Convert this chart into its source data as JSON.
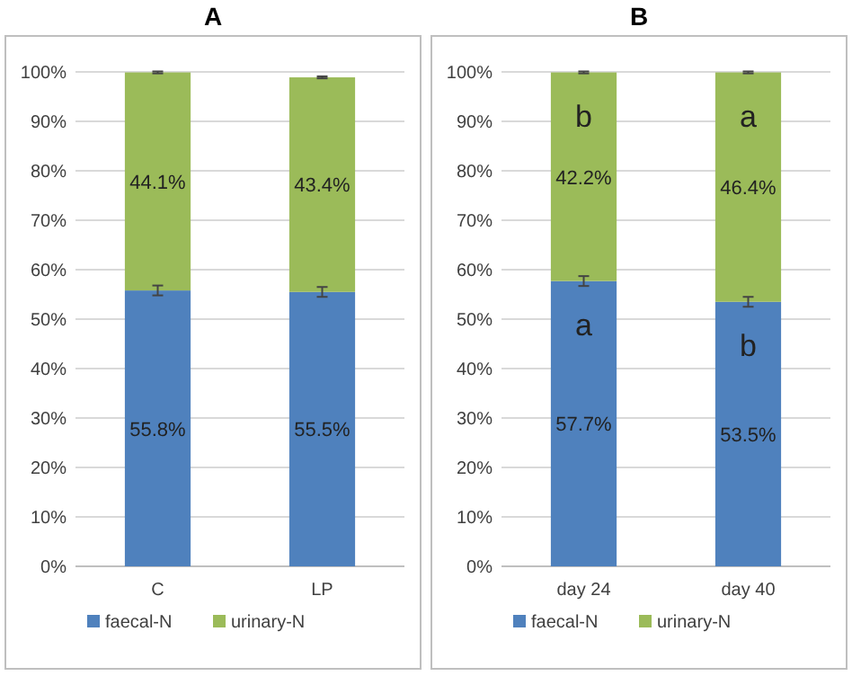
{
  "chart_data": [
    {
      "type": "bar",
      "title": "A",
      "categories": [
        "C",
        "LP"
      ],
      "stacked": true,
      "ylim": [
        0,
        100
      ],
      "yticks": [
        {
          "value": 0,
          "label": "0%"
        },
        {
          "value": 10,
          "label": "10%"
        },
        {
          "value": 20,
          "label": "20%"
        },
        {
          "value": 30,
          "label": "30%"
        },
        {
          "value": 40,
          "label": "40%"
        },
        {
          "value": 50,
          "label": "50%"
        },
        {
          "value": 60,
          "label": "60%"
        },
        {
          "value": 70,
          "label": "70%"
        },
        {
          "value": 80,
          "label": "80%"
        },
        {
          "value": 90,
          "label": "90%"
        },
        {
          "value": 100,
          "label": "100%"
        }
      ],
      "grid": "y",
      "legend": "bottom",
      "series": [
        {
          "name": "faecal-N",
          "color": "#4f81bd",
          "values": [
            55.8,
            55.5
          ],
          "errors": [
            1,
            1
          ],
          "value_labels": [
            "55.8%",
            "55.5%"
          ]
        },
        {
          "name": "urinary-N",
          "color": "#9bbb59",
          "values": [
            44.1,
            43.4
          ],
          "errors": [
            0.2,
            0.2
          ],
          "value_labels": [
            "44.1%",
            "43.4%"
          ]
        }
      ]
    },
    {
      "type": "bar",
      "title": "B",
      "categories": [
        "day 24",
        "day 40"
      ],
      "stacked": true,
      "ylim": [
        0,
        100
      ],
      "yticks": [
        {
          "value": 0,
          "label": "0%"
        },
        {
          "value": 10,
          "label": "10%"
        },
        {
          "value": 20,
          "label": "20%"
        },
        {
          "value": 30,
          "label": "30%"
        },
        {
          "value": 40,
          "label": "40%"
        },
        {
          "value": 50,
          "label": "50%"
        },
        {
          "value": 60,
          "label": "60%"
        },
        {
          "value": 70,
          "label": "70%"
        },
        {
          "value": 80,
          "label": "80%"
        },
        {
          "value": 90,
          "label": "90%"
        },
        {
          "value": 100,
          "label": "100%"
        }
      ],
      "grid": "y",
      "legend": "bottom",
      "series": [
        {
          "name": "faecal-N",
          "color": "#4f81bd",
          "values": [
            57.7,
            53.5
          ],
          "errors": [
            1,
            1
          ],
          "value_labels": [
            "57.7%",
            "53.5%"
          ]
        },
        {
          "name": "urinary-N",
          "color": "#9bbb59",
          "values": [
            42.2,
            46.4
          ],
          "errors": [
            0.2,
            0.2
          ],
          "value_labels": [
            "42.2%",
            "46.4%"
          ]
        }
      ],
      "annotations": [
        "b",
        "a",
        "a",
        "b"
      ]
    }
  ]
}
